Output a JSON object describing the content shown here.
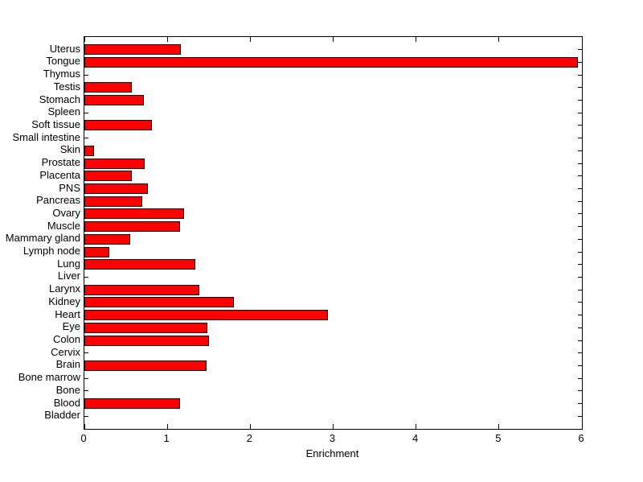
{
  "figure": {
    "background": "#ffffff"
  },
  "chart_data": {
    "type": "bar",
    "orientation": "horizontal",
    "title": "",
    "xlabel": "Enrichment",
    "ylabel": "",
    "xlim": [
      0,
      6
    ],
    "x_ticks": [
      0,
      1,
      2,
      3,
      4,
      5,
      6
    ],
    "grid": false,
    "legend": false,
    "bar_color": "#FF0000",
    "bar_edge_color": "#000000",
    "categories_top_to_bottom": [
      "Uterus",
      "Tongue",
      "Thymus",
      "Testis",
      "Stomach",
      "Spleen",
      "Soft tissue",
      "Small intestine",
      "Skin",
      "Prostate",
      "Placenta",
      "PNS",
      "Pancreas",
      "Ovary",
      "Muscle",
      "Mammary gland",
      "Lymph node",
      "Lung",
      "Liver",
      "Larynx",
      "Kidney",
      "Heart",
      "Eye",
      "Colon",
      "Cervix",
      "Brain",
      "Bone marrow",
      "Bone",
      "Blood",
      "Bladder"
    ],
    "values": [
      1.16,
      5.95,
      0,
      0.57,
      0.72,
      0,
      0.81,
      0,
      0.12,
      0.73,
      0.57,
      0.77,
      0.7,
      1.2,
      1.15,
      0.55,
      0.3,
      1.34,
      0,
      1.39,
      1.8,
      2.94,
      1.48,
      1.5,
      0,
      1.47,
      0,
      0,
      1.15,
      0
    ]
  }
}
